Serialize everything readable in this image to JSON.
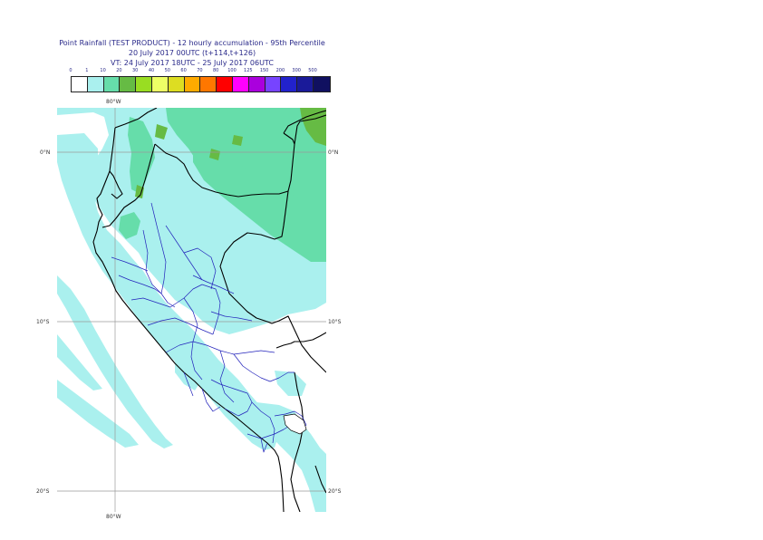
{
  "header": {
    "title_line1": "Point Rainfall (TEST PRODUCT) - 12 hourly accumulation - 95th Percentile",
    "title_line2": "20 July 2017 00UTC (t+114,t+126)",
    "title_line3": "VT: 24 July 2017 18UTC - 25 July 2017 06UTC"
  },
  "legend": {
    "thresholds": [
      "0",
      "1",
      "10",
      "20",
      "30",
      "40",
      "50",
      "60",
      "70",
      "80",
      "100",
      "125",
      "150",
      "200",
      "300",
      "500"
    ],
    "colors": [
      "#ffffff",
      "#aaf0ee",
      "#66ddaa",
      "#66bb44",
      "#99dd22",
      "#eeff66",
      "#dddd22",
      "#ffaa00",
      "#ff7700",
      "#ff0000",
      "#ff00ff",
      "#aa00dd",
      "#7744ff",
      "#2222cc",
      "#1a1a99",
      "#101060"
    ]
  },
  "map": {
    "axis_labels": {
      "lon_top": "80°W",
      "lon_bottom": "80°W",
      "lat_0_left": "0°N",
      "lat_0_right": "0°N",
      "lat_10_left": "10°S",
      "lat_10_right": "10°S",
      "lat_20_left": "20°S",
      "lat_20_right": "20°S"
    },
    "field_colors": {
      "light": "#aaf0ee",
      "medium": "#66ddaa",
      "heavy": "#66bb44",
      "ocean": "#ffffff",
      "coast": "#000000",
      "province_border": "#2222bb",
      "graticule": "#9a9a9a"
    }
  }
}
